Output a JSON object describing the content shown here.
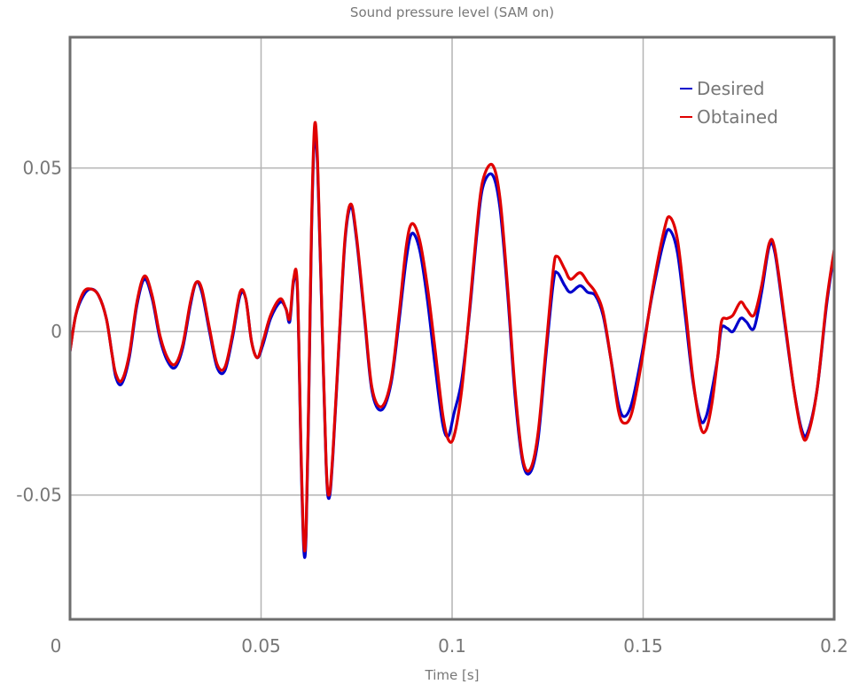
{
  "chart_data": {
    "type": "line",
    "title": "Sound pressure level (SAM on)",
    "xlabel": "Time [s]",
    "ylabel": "",
    "xlim": [
      0,
      0.2
    ],
    "ylim": [
      -0.088,
      0.09
    ],
    "xticks": [
      0,
      0.05,
      0.1,
      0.15,
      0.2
    ],
    "xtick_labels": [
      "0",
      "0.05",
      "0.1",
      "0.15",
      "0.2"
    ],
    "yticks": [
      0.05,
      0,
      -0.05
    ],
    "ytick_labels": [
      "0.05",
      "0",
      "-0.05"
    ],
    "grid": true,
    "legend_position": "top-right",
    "series": [
      {
        "name": "Desired",
        "color": "#0000cc",
        "points": [
          [
            0,
            -0.006
          ],
          [
            0.0015,
            0.005
          ],
          [
            0.0035,
            0.011
          ],
          [
            0.0055,
            0.013
          ],
          [
            0.0075,
            0.011
          ],
          [
            0.0095,
            0.004
          ],
          [
            0.011,
            -0.007
          ],
          [
            0.012,
            -0.014
          ],
          [
            0.0135,
            -0.016
          ],
          [
            0.0155,
            -0.008
          ],
          [
            0.0175,
            0.008
          ],
          [
            0.0195,
            0.016
          ],
          [
            0.0215,
            0.01
          ],
          [
            0.0235,
            -0.002
          ],
          [
            0.0255,
            -0.009
          ],
          [
            0.0275,
            -0.011
          ],
          [
            0.0295,
            -0.005
          ],
          [
            0.0315,
            0.008
          ],
          [
            0.033,
            0.015
          ],
          [
            0.0345,
            0.012
          ],
          [
            0.0365,
            0.0
          ],
          [
            0.0385,
            -0.011
          ],
          [
            0.0405,
            -0.012
          ],
          [
            0.0425,
            -0.002
          ],
          [
            0.0445,
            0.011
          ],
          [
            0.046,
            0.01
          ],
          [
            0.0475,
            -0.003
          ],
          [
            0.049,
            -0.008
          ],
          [
            0.0505,
            -0.004
          ],
          [
            0.0525,
            0.004
          ],
          [
            0.055,
            0.009
          ],
          [
            0.0565,
            0.007
          ],
          [
            0.0575,
            0.003
          ],
          [
            0.0585,
            0.015
          ],
          [
            0.0595,
            0.013
          ],
          [
            0.0605,
            -0.04
          ],
          [
            0.0612,
            -0.067
          ],
          [
            0.0618,
            -0.062
          ],
          [
            0.0625,
            -0.02
          ],
          [
            0.0632,
            0.03
          ],
          [
            0.064,
            0.06
          ],
          [
            0.0648,
            0.05
          ],
          [
            0.0658,
            0.01
          ],
          [
            0.067,
            -0.04
          ],
          [
            0.0678,
            -0.051
          ],
          [
            0.0688,
            -0.038
          ],
          [
            0.0705,
            -0.002
          ],
          [
            0.072,
            0.028
          ],
          [
            0.0735,
            0.038
          ],
          [
            0.075,
            0.028
          ],
          [
            0.077,
            0.005
          ],
          [
            0.079,
            -0.018
          ],
          [
            0.0815,
            -0.024
          ],
          [
            0.084,
            -0.016
          ],
          [
            0.086,
            0.002
          ],
          [
            0.088,
            0.022
          ],
          [
            0.0895,
            0.03
          ],
          [
            0.0915,
            0.025
          ],
          [
            0.0935,
            0.01
          ],
          [
            0.0955,
            -0.01
          ],
          [
            0.0975,
            -0.028
          ],
          [
            0.099,
            -0.032
          ],
          [
            0.1005,
            -0.025
          ],
          [
            0.1025,
            -0.015
          ],
          [
            0.1045,
            0.005
          ],
          [
            0.1065,
            0.03
          ],
          [
            0.108,
            0.044
          ],
          [
            0.1105,
            0.048
          ],
          [
            0.1125,
            0.038
          ],
          [
            0.1145,
            0.012
          ],
          [
            0.1165,
            -0.02
          ],
          [
            0.1185,
            -0.04
          ],
          [
            0.1205,
            -0.043
          ],
          [
            0.1225,
            -0.033
          ],
          [
            0.1245,
            -0.008
          ],
          [
            0.1265,
            0.015
          ],
          [
            0.1275,
            0.018
          ],
          [
            0.1295,
            0.014
          ],
          [
            0.131,
            0.012
          ],
          [
            0.1335,
            0.014
          ],
          [
            0.1355,
            0.012
          ],
          [
            0.1375,
            0.011
          ],
          [
            0.1395,
            0.005
          ],
          [
            0.1415,
            -0.008
          ],
          [
            0.1435,
            -0.022
          ],
          [
            0.145,
            -0.026
          ],
          [
            0.147,
            -0.022
          ],
          [
            0.1495,
            -0.008
          ],
          [
            0.1525,
            0.012
          ],
          [
            0.1555,
            0.028
          ],
          [
            0.157,
            0.031
          ],
          [
            0.159,
            0.024
          ],
          [
            0.161,
            0.005
          ],
          [
            0.163,
            -0.015
          ],
          [
            0.165,
            -0.027
          ],
          [
            0.1665,
            -0.026
          ],
          [
            0.168,
            -0.018
          ],
          [
            0.1695,
            -0.008
          ],
          [
            0.1705,
            0.001
          ],
          [
            0.172,
            0.001
          ],
          [
            0.1735,
            0.0
          ],
          [
            0.1755,
            0.004
          ],
          [
            0.177,
            0.003
          ],
          [
            0.179,
            0.001
          ],
          [
            0.181,
            0.012
          ],
          [
            0.183,
            0.026
          ],
          [
            0.1845,
            0.024
          ],
          [
            0.187,
            0.003
          ],
          [
            0.1895,
            -0.018
          ],
          [
            0.1915,
            -0.03
          ],
          [
            0.193,
            -0.031
          ],
          [
            0.1955,
            -0.018
          ],
          [
            0.198,
            0.008
          ],
          [
            0.2,
            0.024
          ]
        ]
      },
      {
        "name": "Obtained",
        "color": "#e00000",
        "points": [
          [
            0,
            -0.006
          ],
          [
            0.0015,
            0.005
          ],
          [
            0.0035,
            0.012
          ],
          [
            0.0055,
            0.013
          ],
          [
            0.0075,
            0.011
          ],
          [
            0.0095,
            0.004
          ],
          [
            0.011,
            -0.007
          ],
          [
            0.012,
            -0.013
          ],
          [
            0.0135,
            -0.015
          ],
          [
            0.0155,
            -0.007
          ],
          [
            0.0175,
            0.009
          ],
          [
            0.0195,
            0.017
          ],
          [
            0.0215,
            0.011
          ],
          [
            0.0235,
            -0.001
          ],
          [
            0.0255,
            -0.008
          ],
          [
            0.0275,
            -0.01
          ],
          [
            0.0295,
            -0.004
          ],
          [
            0.0315,
            0.009
          ],
          [
            0.033,
            0.015
          ],
          [
            0.0345,
            0.013
          ],
          [
            0.0365,
            0.001
          ],
          [
            0.0385,
            -0.01
          ],
          [
            0.0405,
            -0.011
          ],
          [
            0.0425,
            -0.001
          ],
          [
            0.0445,
            0.012
          ],
          [
            0.046,
            0.01
          ],
          [
            0.0475,
            -0.003
          ],
          [
            0.049,
            -0.008
          ],
          [
            0.0505,
            -0.003
          ],
          [
            0.0525,
            0.005
          ],
          [
            0.055,
            0.01
          ],
          [
            0.0565,
            0.007
          ],
          [
            0.0575,
            0.004
          ],
          [
            0.0585,
            0.016
          ],
          [
            0.0595,
            0.014
          ],
          [
            0.0605,
            -0.038
          ],
          [
            0.0612,
            -0.065
          ],
          [
            0.0618,
            -0.06
          ],
          [
            0.0625,
            -0.018
          ],
          [
            0.0632,
            0.032
          ],
          [
            0.064,
            0.063
          ],
          [
            0.0648,
            0.052
          ],
          [
            0.0658,
            0.011
          ],
          [
            0.067,
            -0.039
          ],
          [
            0.0678,
            -0.05
          ],
          [
            0.0688,
            -0.037
          ],
          [
            0.0705,
            -0.001
          ],
          [
            0.072,
            0.029
          ],
          [
            0.0735,
            0.039
          ],
          [
            0.075,
            0.029
          ],
          [
            0.077,
            0.006
          ],
          [
            0.079,
            -0.017
          ],
          [
            0.0815,
            -0.023
          ],
          [
            0.084,
            -0.015
          ],
          [
            0.086,
            0.004
          ],
          [
            0.088,
            0.026
          ],
          [
            0.0895,
            0.033
          ],
          [
            0.0915,
            0.028
          ],
          [
            0.0935,
            0.014
          ],
          [
            0.0955,
            -0.005
          ],
          [
            0.0975,
            -0.025
          ],
          [
            0.099,
            -0.033
          ],
          [
            0.1005,
            -0.032
          ],
          [
            0.1025,
            -0.018
          ],
          [
            0.1045,
            0.006
          ],
          [
            0.1065,
            0.032
          ],
          [
            0.108,
            0.046
          ],
          [
            0.1105,
            0.051
          ],
          [
            0.1125,
            0.041
          ],
          [
            0.1145,
            0.014
          ],
          [
            0.1165,
            -0.018
          ],
          [
            0.1185,
            -0.039
          ],
          [
            0.1205,
            -0.042
          ],
          [
            0.1225,
            -0.031
          ],
          [
            0.1245,
            -0.006
          ],
          [
            0.1265,
            0.019
          ],
          [
            0.1275,
            0.023
          ],
          [
            0.1295,
            0.019
          ],
          [
            0.131,
            0.016
          ],
          [
            0.1335,
            0.018
          ],
          [
            0.1355,
            0.015
          ],
          [
            0.1375,
            0.012
          ],
          [
            0.1395,
            0.006
          ],
          [
            0.1415,
            -0.008
          ],
          [
            0.1435,
            -0.024
          ],
          [
            0.145,
            -0.028
          ],
          [
            0.147,
            -0.025
          ],
          [
            0.1495,
            -0.01
          ],
          [
            0.1525,
            0.013
          ],
          [
            0.1555,
            0.031
          ],
          [
            0.157,
            0.035
          ],
          [
            0.159,
            0.028
          ],
          [
            0.161,
            0.008
          ],
          [
            0.163,
            -0.014
          ],
          [
            0.165,
            -0.029
          ],
          [
            0.1665,
            -0.03
          ],
          [
            0.168,
            -0.022
          ],
          [
            0.1695,
            -0.008
          ],
          [
            0.1705,
            0.003
          ],
          [
            0.172,
            0.004
          ],
          [
            0.1735,
            0.005
          ],
          [
            0.1755,
            0.009
          ],
          [
            0.177,
            0.007
          ],
          [
            0.179,
            0.005
          ],
          [
            0.181,
            0.014
          ],
          [
            0.183,
            0.027
          ],
          [
            0.1845,
            0.025
          ],
          [
            0.187,
            0.004
          ],
          [
            0.1895,
            -0.018
          ],
          [
            0.1915,
            -0.031
          ],
          [
            0.193,
            -0.032
          ],
          [
            0.1955,
            -0.018
          ],
          [
            0.198,
            0.009
          ],
          [
            0.2,
            0.025
          ]
        ]
      }
    ]
  }
}
